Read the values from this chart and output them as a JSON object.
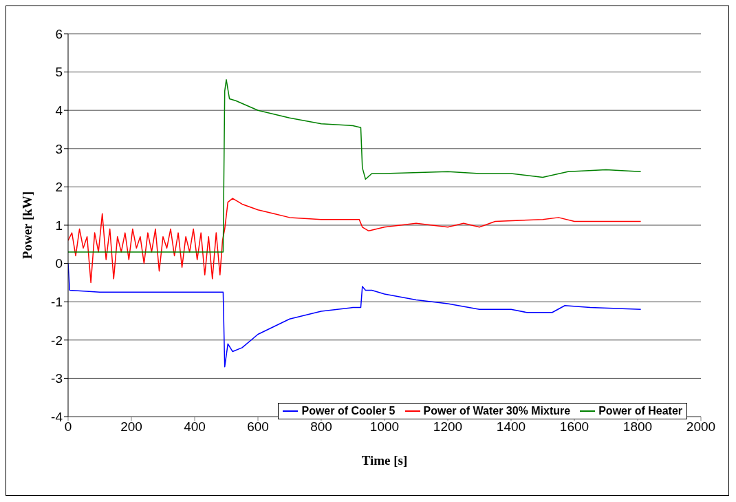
{
  "chart_data": {
    "type": "line",
    "xlabel": "Time [s]",
    "ylabel": "Power [kW]",
    "xlim": [
      0,
      2000
    ],
    "xticks": [
      0,
      200,
      400,
      600,
      800,
      1000,
      1200,
      1400,
      1600,
      1800,
      2000
    ],
    "ylim": [
      -4,
      6
    ],
    "yticks": [
      -4,
      -3,
      -2,
      -1,
      0,
      1,
      2,
      3,
      4,
      5,
      6
    ],
    "grid": "y",
    "legend": "bottom right",
    "marker": "none",
    "line_style": "solid",
    "series": [
      {
        "name": "Power of Cooler 5",
        "color": "#0000ff",
        "x": [
          0,
          5,
          100,
          200,
          300,
          400,
          490,
          495,
          505,
          520,
          550,
          600,
          700,
          800,
          900,
          925,
          930,
          940,
          960,
          1000,
          1100,
          1200,
          1300,
          1400,
          1450,
          1530,
          1570,
          1650,
          1810
        ],
        "values": [
          0,
          -0.7,
          -0.75,
          -0.75,
          -0.75,
          -0.75,
          -0.75,
          -2.7,
          -2.1,
          -2.3,
          -2.2,
          -1.85,
          -1.45,
          -1.25,
          -1.15,
          -1.15,
          -0.6,
          -0.7,
          -0.7,
          -0.8,
          -0.95,
          -1.05,
          -1.2,
          -1.2,
          -1.28,
          -1.28,
          -1.1,
          -1.15,
          -1.2
        ]
      },
      {
        "name": "Power of Water 30% Mixture",
        "color": "#ff0000",
        "x": [
          0,
          12,
          24,
          36,
          48,
          60,
          72,
          84,
          96,
          108,
          120,
          132,
          144,
          156,
          168,
          180,
          192,
          204,
          216,
          228,
          240,
          252,
          264,
          276,
          288,
          300,
          312,
          324,
          336,
          348,
          360,
          372,
          384,
          396,
          408,
          420,
          432,
          444,
          456,
          468,
          480,
          488,
          495,
          505,
          520,
          550,
          600,
          650,
          700,
          800,
          900,
          920,
          930,
          950,
          1000,
          1100,
          1200,
          1250,
          1300,
          1350,
          1500,
          1550,
          1600,
          1700,
          1810
        ],
        "values": [
          0.6,
          0.8,
          0.2,
          0.9,
          0.4,
          0.7,
          -0.5,
          0.8,
          0.3,
          1.3,
          0.1,
          0.9,
          -0.4,
          0.7,
          0.3,
          0.8,
          0.1,
          0.9,
          0.4,
          0.7,
          0,
          0.8,
          0.3,
          0.9,
          -0.2,
          0.7,
          0.4,
          0.9,
          0.2,
          0.8,
          -0.1,
          0.7,
          0.3,
          0.9,
          0.1,
          0.8,
          -0.3,
          0.7,
          -0.4,
          0.8,
          -0.3,
          0.6,
          0.9,
          1.6,
          1.7,
          1.55,
          1.4,
          1.3,
          1.2,
          1.15,
          1.15,
          1.15,
          0.95,
          0.85,
          0.95,
          1.05,
          0.95,
          1.05,
          0.95,
          1.1,
          1.15,
          1.2,
          1.1,
          1.1,
          1.1
        ]
      },
      {
        "name": "Power of Heater",
        "color": "#008000",
        "x": [
          0,
          100,
          200,
          300,
          400,
          490,
          495,
          500,
          510,
          530,
          600,
          700,
          800,
          900,
          925,
          930,
          940,
          960,
          1000,
          1200,
          1300,
          1400,
          1500,
          1580,
          1700,
          1810
        ],
        "values": [
          0.3,
          0.3,
          0.3,
          0.3,
          0.3,
          0.3,
          4.5,
          4.8,
          4.3,
          4.25,
          4.0,
          3.8,
          3.65,
          3.6,
          3.55,
          2.5,
          2.2,
          2.35,
          2.35,
          2.4,
          2.35,
          2.35,
          2.25,
          2.4,
          2.45,
          2.4
        ]
      }
    ]
  }
}
